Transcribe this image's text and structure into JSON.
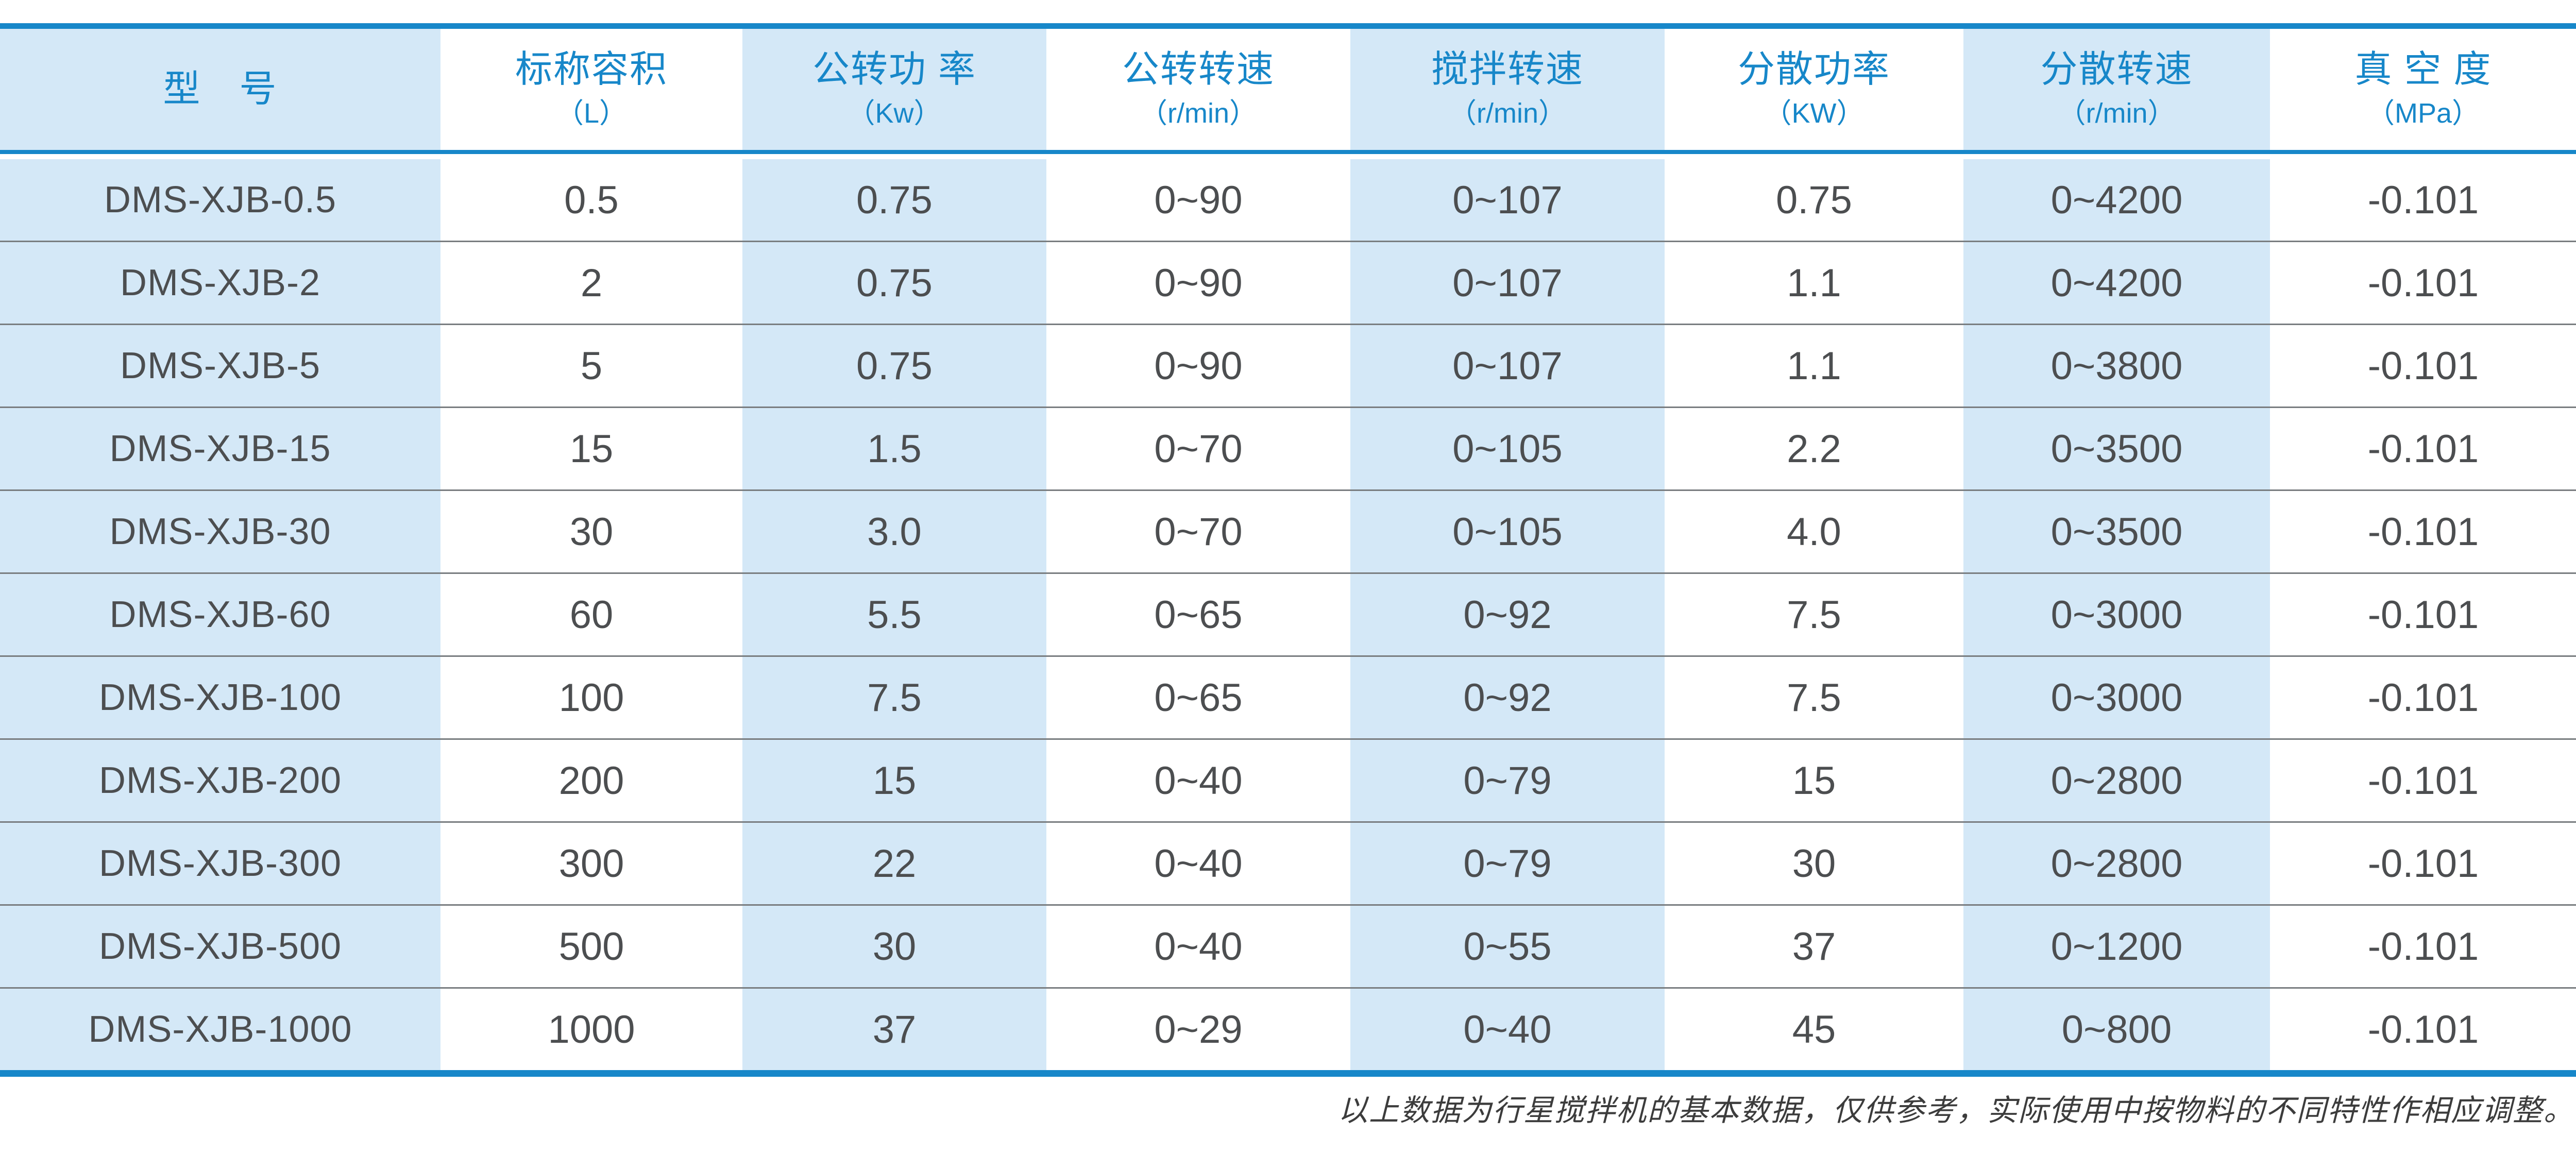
{
  "colors": {
    "accent_blue": "#1787c9",
    "tinted_cell_blue": "#d4e8f7",
    "row_separator_gray": "#797d80",
    "data_text": "#4c4e50"
  },
  "table": {
    "columns": [
      {
        "title": "型　号",
        "unit": ""
      },
      {
        "title": "标称容积",
        "unit": "（L）"
      },
      {
        "title": "公转功 率",
        "unit": "（Kw）"
      },
      {
        "title": "公转转速",
        "unit": "（r/min）"
      },
      {
        "title": "搅拌转速",
        "unit": "（r/min）"
      },
      {
        "title": "分散功率",
        "unit": "（KW）"
      },
      {
        "title": "分散转速",
        "unit": "（r/min）"
      },
      {
        "title": "真 空 度",
        "unit": "（MPa）"
      }
    ],
    "rows": [
      {
        "model": "DMS-XJB-0.5",
        "volume": "0.5",
        "rev_power": "0.75",
        "rev_speed": "0~90",
        "mix_speed": "0~107",
        "disp_power": "0.75",
        "disp_speed": "0~4200",
        "vacuum": "-0.101"
      },
      {
        "model": "DMS-XJB-2",
        "volume": "2",
        "rev_power": "0.75",
        "rev_speed": "0~90",
        "mix_speed": "0~107",
        "disp_power": "1.1",
        "disp_speed": "0~4200",
        "vacuum": "-0.101"
      },
      {
        "model": "DMS-XJB-5",
        "volume": "5",
        "rev_power": "0.75",
        "rev_speed": "0~90",
        "mix_speed": "0~107",
        "disp_power": "1.1",
        "disp_speed": "0~3800",
        "vacuum": "-0.101"
      },
      {
        "model": "DMS-XJB-15",
        "volume": "15",
        "rev_power": "1.5",
        "rev_speed": "0~70",
        "mix_speed": "0~105",
        "disp_power": "2.2",
        "disp_speed": "0~3500",
        "vacuum": "-0.101"
      },
      {
        "model": "DMS-XJB-30",
        "volume": "30",
        "rev_power": "3.0",
        "rev_speed": "0~70",
        "mix_speed": "0~105",
        "disp_power": "4.0",
        "disp_speed": "0~3500",
        "vacuum": "-0.101"
      },
      {
        "model": "DMS-XJB-60",
        "volume": "60",
        "rev_power": "5.5",
        "rev_speed": "0~65",
        "mix_speed": "0~92",
        "disp_power": "7.5",
        "disp_speed": "0~3000",
        "vacuum": "-0.101"
      },
      {
        "model": "DMS-XJB-100",
        "volume": "100",
        "rev_power": "7.5",
        "rev_speed": "0~65",
        "mix_speed": "0~92",
        "disp_power": "7.5",
        "disp_speed": "0~3000",
        "vacuum": "-0.101"
      },
      {
        "model": "DMS-XJB-200",
        "volume": "200",
        "rev_power": "15",
        "rev_speed": "0~40",
        "mix_speed": "0~79",
        "disp_power": "15",
        "disp_speed": "0~2800",
        "vacuum": "-0.101"
      },
      {
        "model": "DMS-XJB-300",
        "volume": "300",
        "rev_power": "22",
        "rev_speed": "0~40",
        "mix_speed": "0~79",
        "disp_power": "30",
        "disp_speed": "0~2800",
        "vacuum": "-0.101"
      },
      {
        "model": "DMS-XJB-500",
        "volume": "500",
        "rev_power": "30",
        "rev_speed": "0~40",
        "mix_speed": "0~55",
        "disp_power": "37",
        "disp_speed": "0~1200",
        "vacuum": "-0.101"
      },
      {
        "model": "DMS-XJB-1000",
        "volume": "1000",
        "rev_power": "37",
        "rev_speed": "0~29",
        "mix_speed": "0~40",
        "disp_power": "45",
        "disp_speed": "0~800",
        "vacuum": "-0.101"
      }
    ]
  },
  "footer": {
    "note": "以上数据为行星搅拌机的基本数据，仅供参考，实际使用中按物料的不同特性作相应调整。"
  }
}
